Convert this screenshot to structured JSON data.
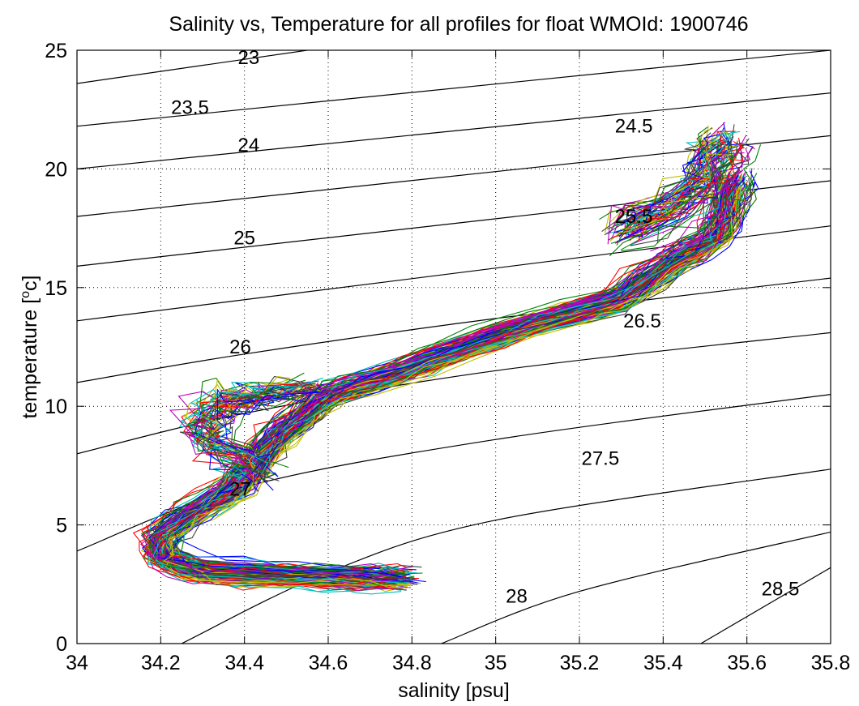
{
  "chart_data": {
    "type": "line",
    "title": "Salinity vs, Temperature for all profiles for float WMOId: 1900746",
    "xlabel": "salinity [psu]",
    "ylabel_main": "temperature [",
    "ylabel_sup": "o",
    "ylabel_tail": "c]",
    "xlim": [
      34,
      35.8
    ],
    "ylim": [
      0,
      25
    ],
    "xticks": [
      "34",
      "34.2",
      "34.4",
      "34.6",
      "34.8",
      "35",
      "35.2",
      "35.4",
      "35.6",
      "35.8"
    ],
    "yticks": [
      "0",
      "5",
      "10",
      "15",
      "20",
      "25"
    ],
    "grid": true,
    "density_contours": [
      {
        "label": "23",
        "points": [
          [
            34.0,
            23.6
          ],
          [
            34.55,
            25.0
          ]
        ],
        "label_at": [
          34.41,
          24.7
        ]
      },
      {
        "label": "23.5",
        "points": [
          [
            34.0,
            21.8
          ],
          [
            35.8,
            25.0
          ]
        ],
        "label_at": [
          34.27,
          22.6
        ]
      },
      {
        "label": "24",
        "points": [
          [
            34.0,
            20.0
          ],
          [
            35.8,
            23.2
          ]
        ],
        "label_at": [
          34.41,
          21.0
        ]
      },
      {
        "label": "24.5",
        "points": [
          [
            34.0,
            18.0
          ],
          [
            35.8,
            21.4
          ]
        ],
        "label_at": [
          35.33,
          21.8
        ]
      },
      {
        "label": "25",
        "points": [
          [
            34.0,
            15.9
          ],
          [
            35.8,
            19.5
          ]
        ],
        "label_at": [
          34.4,
          17.1
        ]
      },
      {
        "label": "25.5",
        "points": [
          [
            34.0,
            13.6
          ],
          [
            35.8,
            17.6
          ]
        ],
        "label_at": [
          35.33,
          18.0
        ]
      },
      {
        "label": "26",
        "points": [
          [
            34.0,
            11.0
          ],
          [
            34.4,
            12.2
          ],
          [
            35.0,
            13.7
          ],
          [
            35.8,
            15.4
          ]
        ],
        "label_at": [
          34.39,
          12.5
        ]
      },
      {
        "label": "26.5",
        "points": [
          [
            34.0,
            8.0
          ],
          [
            34.4,
            9.7
          ],
          [
            35.0,
            11.5
          ],
          [
            35.8,
            13.1
          ]
        ],
        "label_at": [
          35.35,
          13.6
        ]
      },
      {
        "label": "27",
        "points": [
          [
            34.0,
            3.9
          ],
          [
            34.4,
            6.6
          ],
          [
            35.0,
            8.6
          ],
          [
            35.8,
            10.5
          ]
        ],
        "label_at": [
          34.39,
          6.5
        ]
      },
      {
        "label": "27.5",
        "points": [
          [
            34.25,
            0.0
          ],
          [
            34.6,
            3.0
          ],
          [
            35.0,
            5.2
          ],
          [
            35.8,
            7.35
          ]
        ],
        "label_at": [
          35.25,
          7.8
        ]
      },
      {
        "label": "28",
        "points": [
          [
            34.87,
            0.0
          ],
          [
            35.2,
            2.2
          ],
          [
            35.8,
            4.7
          ]
        ],
        "label_at": [
          35.05,
          2.0
        ]
      },
      {
        "label": "28.5",
        "points": [
          [
            35.49,
            0.0
          ],
          [
            35.8,
            3.2
          ]
        ],
        "label_at": [
          35.68,
          2.3
        ]
      }
    ],
    "profiles_backbone": [
      [
        35.57,
        19.5
      ],
      [
        35.55,
        18.0
      ],
      [
        35.52,
        17.0
      ],
      [
        35.42,
        16.0
      ],
      [
        35.3,
        14.5
      ],
      [
        35.1,
        13.5
      ],
      [
        34.9,
        12.3
      ],
      [
        34.75,
        11.3
      ],
      [
        34.6,
        10.5
      ],
      [
        34.52,
        9.3
      ],
      [
        34.45,
        8.2
      ],
      [
        34.38,
        6.6
      ],
      [
        34.28,
        5.5
      ],
      [
        34.2,
        4.5
      ],
      [
        34.2,
        3.6
      ],
      [
        34.3,
        3.0
      ],
      [
        34.5,
        2.85
      ],
      [
        34.68,
        2.75
      ],
      [
        34.78,
        2.7
      ]
    ],
    "profiles_shallow_branch": [
      [
        34.55,
        10.8
      ],
      [
        34.45,
        10.5
      ],
      [
        34.4,
        10.3
      ],
      [
        34.33,
        10.2
      ],
      [
        34.29,
        9.2
      ],
      [
        34.32,
        8.4
      ],
      [
        34.4,
        7.7
      ],
      [
        34.42,
        7.0
      ]
    ],
    "profiles_upper_tip": [
      [
        35.3,
        17.3
      ],
      [
        35.4,
        18.2
      ],
      [
        35.5,
        19.5
      ],
      [
        35.52,
        20.5
      ],
      [
        35.55,
        21.3
      ]
    ],
    "series_colors": [
      "#0000ff",
      "#008000",
      "#ff0000",
      "#00bfbf",
      "#bf00bf",
      "#bfbf00",
      "#404040"
    ],
    "profile_count": 140
  }
}
